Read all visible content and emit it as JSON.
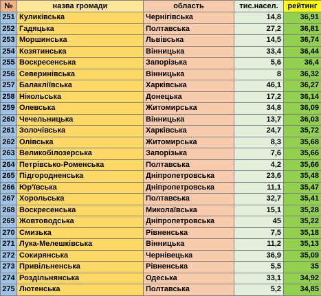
{
  "headers": {
    "num": "№",
    "name": "назва громади",
    "region": "область",
    "population": "тис.насел.",
    "rating": "рейтинг"
  },
  "rows": [
    {
      "num": "251",
      "name": "Куликівська",
      "region": "Чернігівська",
      "population": "14,8",
      "rating": "36,91"
    },
    {
      "num": "252",
      "name": "Гадяцька",
      "region": "Полтавська",
      "population": "27,2",
      "rating": "36,81"
    },
    {
      "num": "253",
      "name": "Моршинська",
      "region": "Львівська",
      "population": "14,5",
      "rating": "36,74"
    },
    {
      "num": "254",
      "name": "Козятинська",
      "region": "Вінницька",
      "population": "33,4",
      "rating": "36,44"
    },
    {
      "num": "255",
      "name": "Воскресенська",
      "region": "Запорізька",
      "population": "5,6",
      "rating": "36,4"
    },
    {
      "num": "256",
      "name": "Северинівська",
      "region": "Вінницька",
      "population": "8",
      "rating": "36,32"
    },
    {
      "num": "257",
      "name": "Балакліївська",
      "region": "Харківська",
      "population": "46,1",
      "rating": "36,27"
    },
    {
      "num": "258",
      "name": "Нікольська",
      "region": "Донецька",
      "population": "17,2",
      "rating": "36,14"
    },
    {
      "num": "259",
      "name": "Олевська",
      "region": "Житомирська",
      "population": "34,8",
      "rating": "36,09"
    },
    {
      "num": "260",
      "name": "Чечельницька",
      "region": "Вінницька",
      "population": "13,7",
      "rating": "36,03"
    },
    {
      "num": "261",
      "name": "Золочівська",
      "region": "Харківська",
      "population": "24,7",
      "rating": "35,72"
    },
    {
      "num": "262",
      "name": "Олівська",
      "region": "Житомирська",
      "population": "8,3",
      "rating": "35,68"
    },
    {
      "num": "263",
      "name": "Великобілозерська",
      "region": "Запорізька",
      "population": "7,6",
      "rating": "35,66"
    },
    {
      "num": "264",
      "name": "Петрівсько-Роменська",
      "region": "Полтавська",
      "population": "4,2",
      "rating": "35,66"
    },
    {
      "num": "265",
      "name": "Підгородненська",
      "region": "Дніпропетровська",
      "population": "23,6",
      "rating": "35,48"
    },
    {
      "num": "266",
      "name": "Юр'ївська",
      "region": "Дніпропетровська",
      "population": "11,1",
      "rating": "35,47"
    },
    {
      "num": "267",
      "name": "Хорольська",
      "region": "Полтавська",
      "population": "32,7",
      "rating": "35,41"
    },
    {
      "num": "268",
      "name": "Воскресенська",
      "region": "Миколаївська",
      "population": "15,1",
      "rating": "35,28"
    },
    {
      "num": "269",
      "name": "Жовтоводська",
      "region": "Дніпропетровська",
      "population": "45",
      "rating": "35,22"
    },
    {
      "num": "270",
      "name": "Смизька",
      "region": "Рівненська",
      "population": "7,5",
      "rating": "35,18"
    },
    {
      "num": "271",
      "name": "Лука-Мелешківська",
      "region": "Вінницька",
      "population": "11,2",
      "rating": "35,13"
    },
    {
      "num": "272",
      "name": "Сокирянська",
      "region": "Чернівецька",
      "population": "36,9",
      "rating": "35,09"
    },
    {
      "num": "273",
      "name": "Привільненська",
      "region": "Рівненська",
      "population": "5,5",
      "rating": "35"
    },
    {
      "num": "274",
      "name": "Роздільнянська",
      "region": "Одеська",
      "population": "33,1",
      "rating": "34,92"
    },
    {
      "num": "275",
      "name": "Лютенська",
      "region": "Полтавська",
      "population": "5,2",
      "rating": "34,85"
    }
  ]
}
